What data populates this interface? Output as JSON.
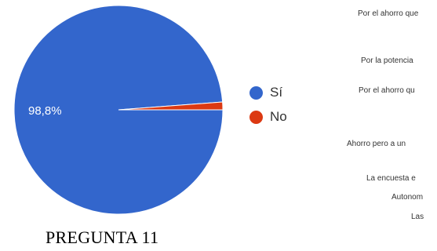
{
  "chart_data": {
    "type": "pie",
    "slices": [
      {
        "label": "Sí",
        "value": 98.8,
        "color": "#3366cc",
        "data_label": "98,8%"
      },
      {
        "label": "No",
        "value": 1.2,
        "color": "#dc3912"
      }
    ],
    "legend_position": "right"
  },
  "caption": "PREGUNTA 11",
  "responses": [
    "Por el ahorro que",
    "Por la potencia",
    "Por el ahorro qu",
    "Ahorro pero a un",
    "La encuesta e",
    "Autonom",
    "Las"
  ]
}
